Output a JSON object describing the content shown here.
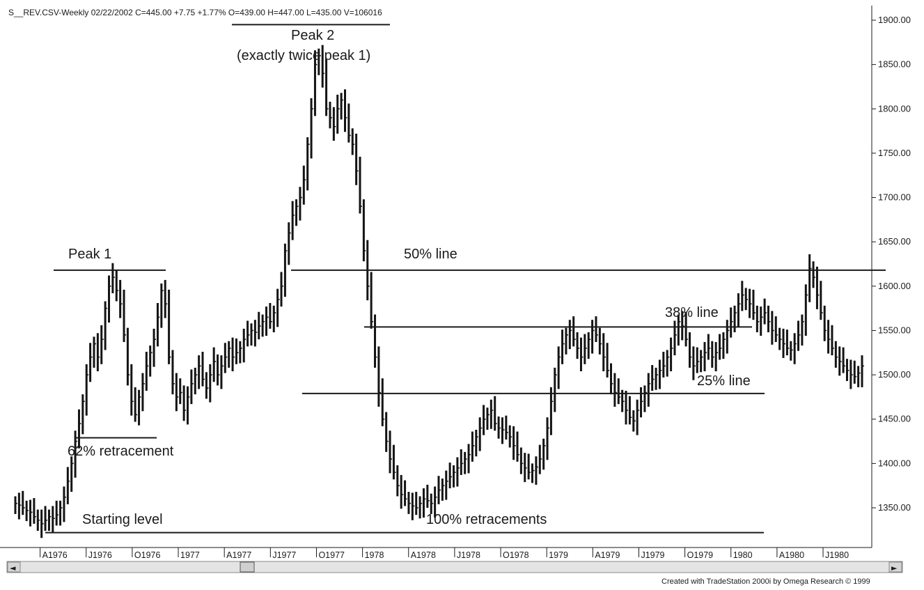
{
  "header": {
    "text": "S__REV.CSV-Weekly   02/22/2002  C=445.00  +7.75  +1.77%  O=439.00  H=447.00  L=435.00  V=106016"
  },
  "footer": {
    "credit": "Created with TradeStation 2000i by Omega Research © 1999"
  },
  "scrollbar": {
    "left_arrow": "◄",
    "right_arrow": "►"
  },
  "colors": {
    "bars": "#141414",
    "lines": "#1a1a1a",
    "scrollbar_track": "#e4e4e4",
    "background": "#ffffff"
  },
  "chart_data": {
    "type": "ohlc-bar",
    "title": "",
    "xlabel": "",
    "ylabel": "",
    "ylim": [
      1305,
      1905
    ],
    "y_axis_side": "right",
    "y_ticks": [
      1350,
      1400,
      1450,
      1500,
      1550,
      1600,
      1650,
      1700,
      1750,
      1800,
      1850,
      1900
    ],
    "y_tick_labels": [
      "1350.00",
      "1400.00",
      "1450.00",
      "1500.00",
      "1550.00",
      "1600.00",
      "1650.00",
      "1700.00",
      "1750.00",
      "1800.00",
      "1850.00",
      "1900.00"
    ],
    "x_tick_labels": [
      {
        "label": "A1976",
        "week": 7
      },
      {
        "label": "J1976",
        "week": 20
      },
      {
        "label": "O1976",
        "week": 33
      },
      {
        "label": "1977",
        "week": 46
      },
      {
        "label": "A1977",
        "week": 59
      },
      {
        "label": "J1977",
        "week": 72
      },
      {
        "label": "O1977",
        "week": 85
      },
      {
        "label": "1978",
        "week": 98
      },
      {
        "label": "A1978",
        "week": 111
      },
      {
        "label": "J1978",
        "week": 124
      },
      {
        "label": "O1978",
        "week": 137
      },
      {
        "label": "1979",
        "week": 150
      },
      {
        "label": "A1979",
        "week": 163
      },
      {
        "label": "J1979",
        "week": 176
      },
      {
        "label": "O1979",
        "week": 189
      },
      {
        "label": "1980",
        "week": 202
      },
      {
        "label": "A1980",
        "week": 215
      },
      {
        "label": "J1980",
        "week": 228
      }
    ],
    "weeks": 240,
    "series": [
      {
        "close": [
          1355,
          1353,
          1350,
          1347,
          1345,
          1340,
          1336,
          1332,
          1336,
          1340,
          1338,
          1342,
          1350,
          1362,
          1380,
          1400,
          1425,
          1445,
          1470,
          1500,
          1520,
          1535,
          1520,
          1540,
          1575,
          1600,
          1610,
          1595,
          1580,
          1545,
          1500,
          1470,
          1455,
          1475,
          1490,
          1510,
          1525,
          1540,
          1565,
          1595,
          1580,
          1520,
          1490,
          1475,
          1480,
          1460,
          1475,
          1490,
          1500,
          1510,
          1495,
          1485,
          1500,
          1515,
          1500,
          1510,
          1520,
          1530,
          1520,
          1525,
          1530,
          1540,
          1545,
          1550,
          1548,
          1555,
          1560,
          1565,
          1560,
          1570,
          1585,
          1600,
          1640,
          1660,
          1680,
          1690,
          1700,
          1720,
          1760,
          1800,
          1850,
          1860,
          1840,
          1800,
          1790,
          1780,
          1800,
          1810,
          1790,
          1770,
          1760,
          1730,
          1690,
          1640,
          1600,
          1560,
          1520,
          1480,
          1450,
          1425,
          1405,
          1390,
          1375,
          1365,
          1360,
          1355,
          1352,
          1350,
          1355,
          1360,
          1358,
          1355,
          1362,
          1370,
          1375,
          1380,
          1385,
          1390,
          1395,
          1400,
          1405,
          1410,
          1420,
          1430,
          1440,
          1450,
          1455,
          1460,
          1445,
          1440,
          1438,
          1435,
          1430,
          1420,
          1410,
          1400,
          1395,
          1390,
          1392,
          1396,
          1405,
          1420,
          1440,
          1470,
          1500,
          1520,
          1535,
          1545,
          1550,
          1540,
          1530,
          1520,
          1530,
          1540,
          1550,
          1545,
          1535,
          1520,
          1505,
          1490,
          1480,
          1475,
          1470,
          1460,
          1452,
          1448,
          1460,
          1470,
          1480,
          1490,
          1495,
          1500,
          1505,
          1510,
          1520,
          1530,
          1545,
          1560,
          1555,
          1540,
          1520,
          1510,
          1515,
          1520,
          1525,
          1530,
          1520,
          1525,
          1530,
          1540,
          1550,
          1560,
          1570,
          1580,
          1590,
          1585,
          1580,
          1570,
          1560,
          1565,
          1570,
          1560,
          1550,
          1545,
          1540,
          1535,
          1530,
          1528,
          1535,
          1545,
          1560,
          1590,
          1620,
          1610,
          1590,
          1570,
          1550,
          1540,
          1530,
          1520,
          1515,
          1510,
          1505,
          1500,
          1498,
          1502,
          1510
        ],
        "low_adj": true
      }
    ],
    "annotations": {
      "peak1": {
        "label": "Peak 1",
        "level": 1618
      },
      "peak2": {
        "label": "Peak 2",
        "sublabel": "(exactly twice peak 1)",
        "level": 1895
      },
      "retracement62": {
        "label": "62% retracement",
        "level": 1429
      },
      "line50": {
        "label": "50% line",
        "level": 1618
      },
      "line38": {
        "label": "38% line",
        "level": 1554
      },
      "line25": {
        "label": "25% line",
        "level": 1479
      },
      "starting_level": {
        "label": "Starting level",
        "level": 1322
      },
      "retracements100": {
        "label": "100% retracements",
        "level": 1322
      }
    }
  }
}
